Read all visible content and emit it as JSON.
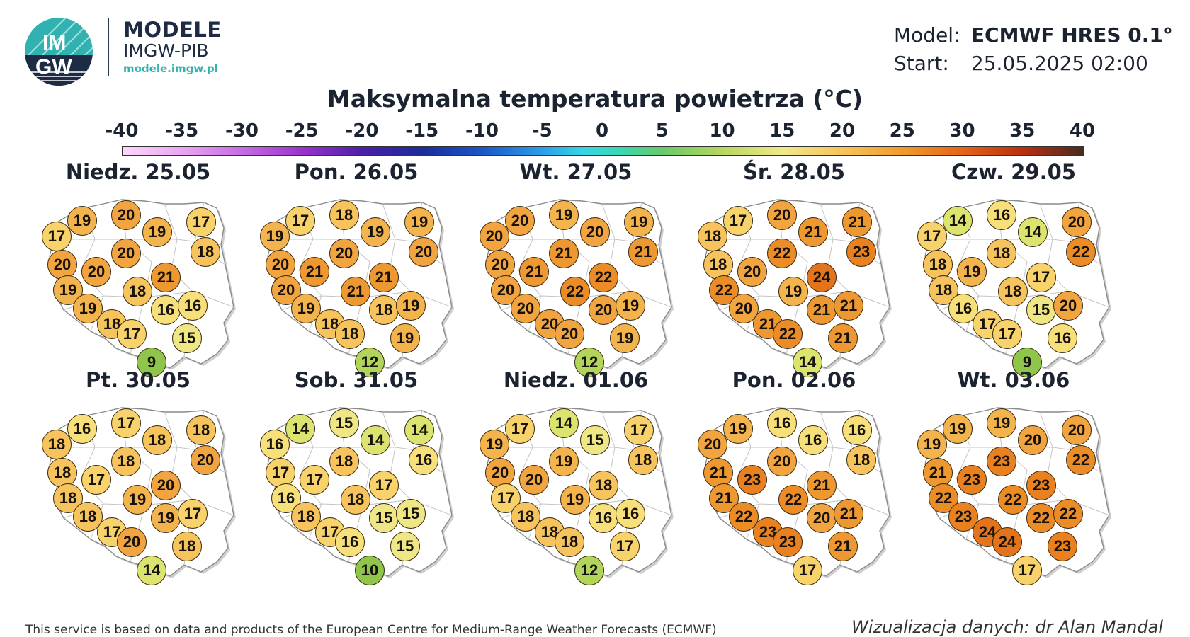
{
  "header": {
    "logo_text_top": "IM",
    "logo_text_bottom": "GW",
    "brand_line1": "MODELE",
    "brand_line2": "IMGW-PIB",
    "brand_url": "modele.imgw.pl",
    "model_label": "Model:",
    "model_value": "ECMWF HRES 0.1°",
    "start_label": "Start:",
    "start_value": "25.05.2025 02:00"
  },
  "title": "Maksymalna temperatura powietrza (°C)",
  "colorbar": {
    "ticks": [
      "-40",
      "-35",
      "-30",
      "-25",
      "-20",
      "-15",
      "-10",
      "-5",
      "0",
      "5",
      "10",
      "15",
      "20",
      "25",
      "30",
      "35",
      "40"
    ],
    "min": -40,
    "max": 40
  },
  "panels": [
    {
      "title": "Niedz. 25.05",
      "values": [
        17,
        19,
        20,
        19,
        17,
        18,
        20,
        20,
        20,
        21,
        18,
        19,
        19,
        18,
        17,
        16,
        16,
        15,
        9
      ]
    },
    {
      "title": "Pon. 26.05",
      "values": [
        19,
        17,
        18,
        19,
        19,
        20,
        20,
        21,
        20,
        21,
        21,
        20,
        19,
        18,
        18,
        18,
        19,
        19,
        12
      ]
    },
    {
      "title": "Wt. 27.05",
      "values": [
        20,
        20,
        19,
        20,
        19,
        21,
        20,
        21,
        21,
        22,
        22,
        20,
        20,
        20,
        20,
        20,
        19,
        19,
        12
      ]
    },
    {
      "title": "Śr. 28.05",
      "values": [
        18,
        17,
        20,
        21,
        21,
        23,
        18,
        20,
        22,
        24,
        19,
        22,
        20,
        21,
        22,
        21,
        21,
        21,
        14
      ]
    },
    {
      "title": "Czw. 29.05",
      "values": [
        17,
        14,
        16,
        14,
        20,
        22,
        18,
        19,
        18,
        17,
        18,
        18,
        16,
        17,
        17,
        15,
        20,
        16,
        9
      ]
    },
    {
      "title": "Pt. 30.05",
      "values": [
        18,
        16,
        17,
        18,
        18,
        20,
        18,
        17,
        18,
        20,
        19,
        18,
        18,
        17,
        20,
        19,
        17,
        18,
        14
      ]
    },
    {
      "title": "Sob. 31.05",
      "values": [
        16,
        14,
        15,
        14,
        14,
        16,
        17,
        17,
        18,
        17,
        18,
        16,
        18,
        17,
        16,
        15,
        15,
        15,
        10
      ]
    },
    {
      "title": "Niedz. 01.06",
      "values": [
        19,
        17,
        14,
        15,
        17,
        18,
        20,
        20,
        19,
        18,
        19,
        17,
        18,
        18,
        18,
        16,
        16,
        17,
        12
      ]
    },
    {
      "title": "Pon. 02.06",
      "values": [
        20,
        19,
        16,
        16,
        16,
        18,
        21,
        23,
        20,
        21,
        22,
        21,
        22,
        23,
        23,
        20,
        21,
        21,
        17
      ]
    },
    {
      "title": "Wt. 03.06",
      "values": [
        19,
        19,
        19,
        20,
        20,
        22,
        21,
        23,
        23,
        23,
        22,
        22,
        23,
        24,
        24,
        22,
        22,
        23,
        17
      ]
    }
  ],
  "footer": {
    "source": "This service is based on data and products of the European Centre for Medium-Range Weather Forecasts (ECMWF)",
    "credit": "Wizualizacja danych: dr Alan Mandal"
  }
}
